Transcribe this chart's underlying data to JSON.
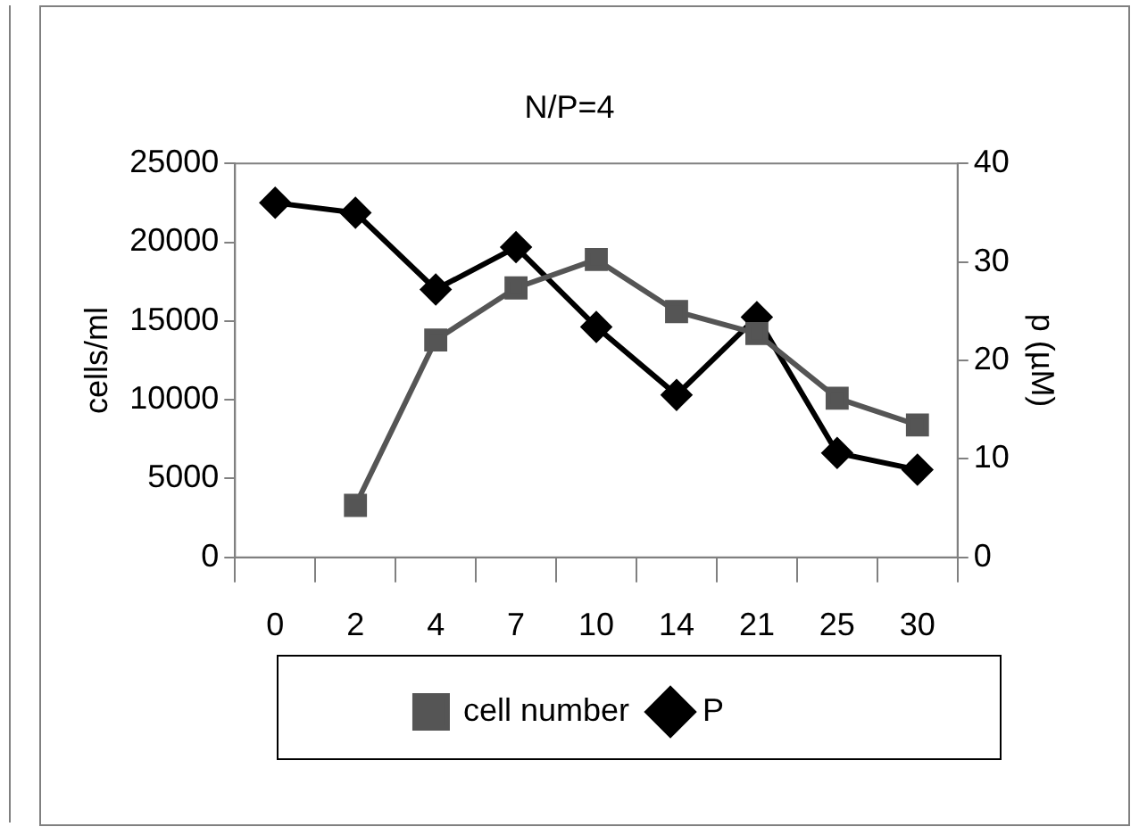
{
  "chart_data": {
    "type": "line",
    "title": "N/P=4",
    "ylabel": "cells/ml",
    "y2label": "p (µM)",
    "categories": [
      "0",
      "2",
      "4",
      "7",
      "10",
      "14",
      "21",
      "25",
      "30"
    ],
    "series": [
      {
        "name": "cell number",
        "color": "#555555",
        "marker": "square",
        "values": [
          null,
          3300,
          13800,
          17100,
          18900,
          15600,
          14200,
          10100,
          8400
        ]
      },
      {
        "name": "P",
        "color": "#000000",
        "marker": "diamond",
        "axis": "y2",
        "values": [
          36.0,
          35.0,
          27.2,
          31.5,
          23.4,
          16.5,
          24.4,
          10.6,
          8.9
        ]
      }
    ],
    "ylim": [
      0,
      25000
    ],
    "yticks": [
      0,
      5000,
      10000,
      15000,
      20000,
      25000
    ],
    "y2lim": [
      0,
      40
    ],
    "y2ticks": [
      0,
      10,
      20,
      30,
      40
    ],
    "grid": false,
    "legend": "bottom",
    "line_style": "solid"
  }
}
